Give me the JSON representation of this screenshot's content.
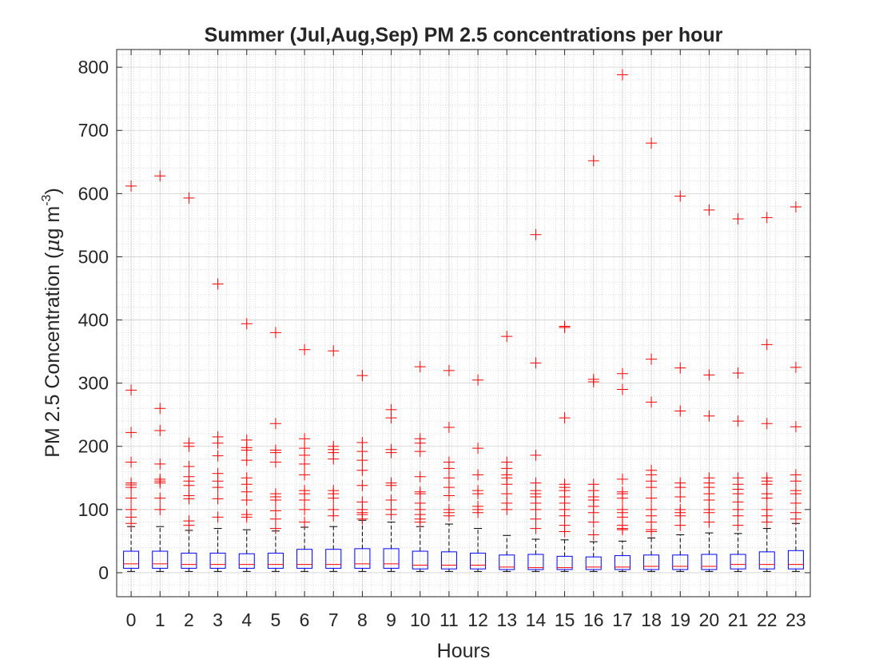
{
  "chart_data": {
    "type": "box",
    "title": "Summer (Jul,Aug,Sep) PM 2.5 concentrations per hour",
    "xlabel": "Hours",
    "ylabel": {
      "main": "PM 2.5 Concentration (",
      "mu": "μ",
      "unit": "g m",
      "exponent": "-3",
      "close": ")"
    },
    "categories": [
      "0",
      "1",
      "2",
      "3",
      "4",
      "5",
      "6",
      "7",
      "8",
      "9",
      "10",
      "11",
      "12",
      "13",
      "14",
      "15",
      "16",
      "17",
      "18",
      "19",
      "20",
      "21",
      "22",
      "23"
    ],
    "y_ticks": [
      0,
      100,
      200,
      300,
      400,
      500,
      600,
      700,
      800
    ],
    "ylim": [
      -38,
      828
    ],
    "grid": true,
    "minor_grid": true,
    "colors": {
      "box": "#0000ff",
      "median": "#ff0000",
      "outlier": "#ff0000",
      "whisker": "#000000",
      "grid": "#b0b0b0",
      "axis": "#262626"
    },
    "boxes": [
      {
        "min": 2,
        "q1": 7,
        "median": 14,
        "q3": 34,
        "max": 73,
        "outliers": [
          612,
          289,
          222,
          175,
          142,
          139,
          135,
          118,
          100,
          88,
          78
        ]
      },
      {
        "min": 2,
        "q1": 7,
        "median": 14,
        "q3": 34,
        "max": 73,
        "outliers": [
          628,
          260,
          225,
          172,
          148,
          145,
          142,
          118,
          100
        ]
      },
      {
        "min": 2,
        "q1": 7,
        "median": 13,
        "q3": 31,
        "max": 67,
        "outliers": [
          593,
          205,
          200,
          168,
          152,
          145,
          138,
          122,
          117,
          82,
          75
        ]
      },
      {
        "min": 2,
        "q1": 7,
        "median": 13,
        "q3": 31,
        "max": 70,
        "outliers": [
          457,
          215,
          205,
          185,
          157,
          145,
          135,
          117,
          88
        ]
      },
      {
        "min": 2,
        "q1": 7,
        "median": 13,
        "q3": 30,
        "max": 68,
        "outliers": [
          394,
          210,
          198,
          194,
          178,
          150,
          140,
          128,
          115,
          92,
          88
        ]
      },
      {
        "min": 2,
        "q1": 7,
        "median": 13,
        "q3": 31,
        "max": 66,
        "outliers": [
          380,
          236,
          194,
          190,
          175,
          125,
          120,
          115,
          98,
          85,
          70
        ]
      },
      {
        "min": 2,
        "q1": 7,
        "median": 13,
        "q3": 37,
        "max": 72,
        "outliers": [
          353,
          212,
          197,
          186,
          172,
          155,
          130,
          125,
          115,
          100,
          80
        ]
      },
      {
        "min": 2,
        "q1": 7,
        "median": 13,
        "q3": 37,
        "max": 73,
        "outliers": [
          351,
          200,
          195,
          190,
          180,
          130,
          125,
          118,
          100,
          90
        ]
      },
      {
        "min": 2,
        "q1": 7,
        "median": 14,
        "q3": 38,
        "max": 83,
        "outliers": [
          312,
          206,
          192,
          178,
          162,
          138,
          112,
          100,
          95,
          92,
          85
        ]
      },
      {
        "min": 2,
        "q1": 7,
        "median": 14,
        "q3": 38,
        "max": 80,
        "outliers": [
          258,
          245,
          195,
          190,
          142,
          138,
          115,
          100,
          92
        ]
      },
      {
        "min": 2,
        "q1": 6,
        "median": 12,
        "q3": 34,
        "max": 73,
        "outliers": [
          326,
          212,
          205,
          192,
          152,
          128,
          125,
          110,
          100,
          92,
          85,
          80
        ]
      },
      {
        "min": 2,
        "q1": 6,
        "median": 12,
        "q3": 33,
        "max": 77,
        "outliers": [
          320,
          230,
          175,
          165,
          150,
          135,
          122,
          100,
          95,
          90
        ]
      },
      {
        "min": 2,
        "q1": 6,
        "median": 12,
        "q3": 31,
        "max": 70,
        "outliers": [
          305,
          197,
          155,
          130,
          125,
          105,
          100,
          95
        ]
      },
      {
        "min": 2,
        "q1": 5,
        "median": 9,
        "q3": 28,
        "max": 59,
        "outliers": [
          374,
          175,
          165,
          155,
          150,
          140,
          125,
          110,
          100
        ]
      },
      {
        "min": 2,
        "q1": 5,
        "median": 8,
        "q3": 29,
        "max": 53,
        "outliers": [
          535,
          332,
          186,
          142,
          130,
          125,
          120,
          110,
          100,
          85,
          70
        ]
      },
      {
        "min": 2,
        "q1": 5,
        "median": 8,
        "q3": 26,
        "max": 52,
        "outliers": [
          390,
          388,
          245,
          140,
          135,
          130,
          120,
          110,
          100,
          90,
          75,
          65
        ]
      },
      {
        "min": 2,
        "q1": 5,
        "median": 9,
        "q3": 25,
        "max": 49,
        "outliers": [
          652,
          306,
          302,
          140,
          130,
          120,
          115,
          105,
          95,
          80,
          60
        ]
      },
      {
        "min": 2,
        "q1": 5,
        "median": 9,
        "q3": 27,
        "max": 50,
        "outliers": [
          788,
          315,
          290,
          148,
          128,
          125,
          118,
          100,
          95,
          88,
          75,
          70,
          68
        ]
      },
      {
        "min": 2,
        "q1": 5,
        "median": 10,
        "q3": 28,
        "max": 55,
        "outliers": [
          680,
          338,
          270,
          162,
          155,
          145,
          135,
          118,
          100,
          90,
          80,
          68,
          65
        ]
      },
      {
        "min": 2,
        "q1": 5,
        "median": 10,
        "q3": 28,
        "max": 60,
        "outliers": [
          596,
          324,
          256,
          142,
          135,
          120,
          100,
          95,
          90,
          75
        ]
      },
      {
        "min": 2,
        "q1": 5,
        "median": 10,
        "q3": 29,
        "max": 63,
        "outliers": [
          574,
          313,
          248,
          150,
          142,
          135,
          125,
          115,
          100,
          95,
          80
        ]
      },
      {
        "min": 2,
        "q1": 6,
        "median": 13,
        "q3": 29,
        "max": 62,
        "outliers": [
          560,
          316,
          240,
          150,
          140,
          132,
          125,
          112,
          100,
          90,
          75
        ]
      },
      {
        "min": 2,
        "q1": 6,
        "median": 13,
        "q3": 33,
        "max": 70,
        "outliers": [
          562,
          361,
          236,
          150,
          145,
          140,
          125,
          118,
          100,
          90,
          80
        ]
      },
      {
        "min": 2,
        "q1": 6,
        "median": 13,
        "q3": 35,
        "max": 78,
        "outliers": [
          579,
          325,
          231,
          155,
          145,
          130,
          125,
          110,
          95,
          85
        ]
      }
    ]
  }
}
